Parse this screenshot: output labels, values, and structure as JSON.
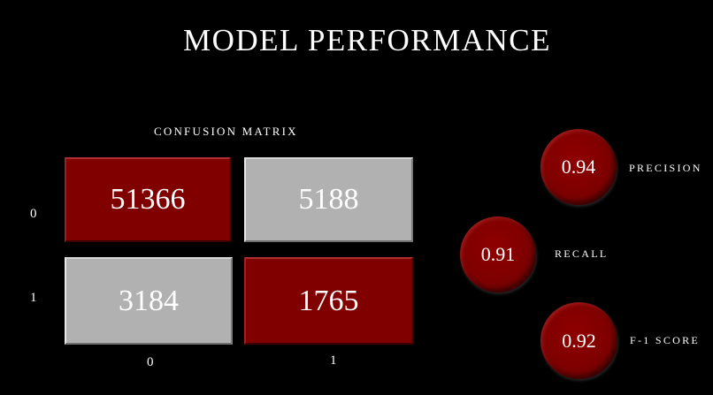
{
  "title": "MODEL PERFORMANCE",
  "confusion_matrix": {
    "label": "CONFUSION MATRIX",
    "cells": {
      "r0c0": "51366",
      "r0c1": "5188",
      "r1c0": "3184",
      "r1c1": "1765"
    },
    "row_labels": [
      "0",
      "1"
    ],
    "col_labels": [
      "0",
      "1"
    ]
  },
  "metrics": {
    "precision": {
      "value": "0.94",
      "label": "PRECISION"
    },
    "recall": {
      "value": "0.91",
      "label": "RECALL"
    },
    "f1": {
      "value": "0.92",
      "label": "F-1 SCORE"
    }
  },
  "colors": {
    "background": "#000000",
    "accent_red": "#800000",
    "neutral_grey": "#b1b1b1",
    "text": "#ffffff"
  }
}
